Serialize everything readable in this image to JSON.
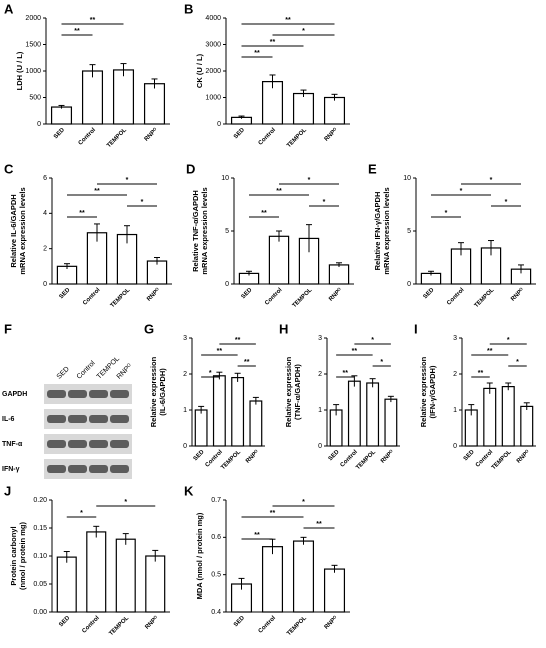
{
  "blot": {
    "label": "F",
    "lanes": [
      "SED",
      "Control",
      "TEMPOL",
      "RNPᴼ"
    ],
    "rows": [
      "GAPDH",
      "IL-6",
      "TNF-α",
      "IFN-γ"
    ]
  },
  "chart_data": [
    {
      "type": "bar",
      "label": "A",
      "ylabel": [
        "LDH (U / L)"
      ],
      "categories": [
        "SED",
        "Control",
        "TEMPOL",
        "RNPᴼ"
      ],
      "values": [
        320,
        1000,
        1020,
        760
      ],
      "errors": [
        30,
        120,
        120,
        90
      ],
      "ylim": [
        0,
        2000
      ],
      "yticks": [
        0,
        500,
        1000,
        1500,
        2000
      ],
      "significance": [
        {
          "label": "**",
          "from": "SED",
          "to": "Control"
        },
        {
          "label": "**",
          "from": "SED",
          "to": "TEMPOL"
        }
      ]
    },
    {
      "type": "bar",
      "label": "B",
      "ylabel": [
        "CK (U / L)"
      ],
      "categories": [
        "SED",
        "Control",
        "TEMPOL",
        "RNPᴼ"
      ],
      "values": [
        250,
        1600,
        1150,
        1000
      ],
      "errors": [
        50,
        250,
        130,
        120
      ],
      "ylim": [
        0,
        4000
      ],
      "yticks": [
        0,
        1000,
        2000,
        3000,
        4000
      ],
      "significance": [
        {
          "label": "**",
          "from": "SED",
          "to": "Control"
        },
        {
          "label": "**",
          "from": "SED",
          "to": "TEMPOL"
        },
        {
          "label": "*",
          "from": "Control",
          "to": "RNPᴼ"
        },
        {
          "label": "**",
          "from": "SED",
          "to": "RNPᴼ"
        }
      ]
    },
    {
      "type": "bar",
      "label": "C",
      "ylabel": [
        "Relative IL-6/GAPDH",
        "mRNA expression levels"
      ],
      "categories": [
        "SED",
        "Control",
        "TEMPOL",
        "RNPᴼ"
      ],
      "values": [
        1,
        2.9,
        2.8,
        1.3
      ],
      "errors": [
        0.15,
        0.5,
        0.5,
        0.2
      ],
      "ylim": [
        0,
        6
      ],
      "yticks": [
        0,
        2,
        4,
        6
      ],
      "significance": [
        {
          "label": "**",
          "from": "SED",
          "to": "Control"
        },
        {
          "label": "*",
          "from": "TEMPOL",
          "to": "RNPᴼ"
        },
        {
          "label": "**",
          "from": "SED",
          "to": "TEMPOL"
        },
        {
          "label": "*",
          "from": "Control",
          "to": "RNPᴼ"
        }
      ]
    },
    {
      "type": "bar",
      "label": "D",
      "ylabel": [
        "Relative TNF-α/GAPDH",
        "mRNA expression levels"
      ],
      "categories": [
        "SED",
        "Control",
        "TEMPOL",
        "RNPᴼ"
      ],
      "values": [
        1,
        4.5,
        4.3,
        1.8
      ],
      "errors": [
        0.2,
        0.5,
        1.3,
        0.2
      ],
      "ylim": [
        0,
        10
      ],
      "yticks": [
        0,
        5,
        10
      ],
      "significance": [
        {
          "label": "**",
          "from": "SED",
          "to": "Control"
        },
        {
          "label": "*",
          "from": "TEMPOL",
          "to": "RNPᴼ"
        },
        {
          "label": "**",
          "from": "SED",
          "to": "TEMPOL"
        },
        {
          "label": "*",
          "from": "Control",
          "to": "RNPᴼ"
        }
      ]
    },
    {
      "type": "bar",
      "label": "E",
      "ylabel": [
        "Relative IFN-γ/GAPDH",
        "mRNA expression levels"
      ],
      "categories": [
        "SED",
        "Control",
        "TEMPOL",
        "RNPᴼ"
      ],
      "values": [
        1,
        3.3,
        3.4,
        1.4
      ],
      "errors": [
        0.2,
        0.6,
        0.7,
        0.4
      ],
      "ylim": [
        0,
        10
      ],
      "yticks": [
        0,
        5,
        10
      ],
      "significance": [
        {
          "label": "*",
          "from": "SED",
          "to": "Control"
        },
        {
          "label": "*",
          "from": "TEMPOL",
          "to": "RNPᴼ"
        },
        {
          "label": "*",
          "from": "SED",
          "to": "TEMPOL"
        },
        {
          "label": "*",
          "from": "Control",
          "to": "RNPᴼ"
        }
      ]
    },
    {
      "type": "bar",
      "label": "G",
      "ylabel": [
        "Relative expression",
        "(IL-6/GAPDH)"
      ],
      "categories": [
        "SED",
        "Control",
        "TEMPOL",
        "RNPᴼ"
      ],
      "values": [
        1,
        1.95,
        1.9,
        1.25
      ],
      "errors": [
        0.1,
        0.1,
        0.12,
        0.1
      ],
      "ylim": [
        0,
        3
      ],
      "yticks": [
        0,
        1,
        2,
        3
      ],
      "significance": [
        {
          "label": "*",
          "from": "SED",
          "to": "Control"
        },
        {
          "label": "**",
          "from": "TEMPOL",
          "to": "RNPᴼ"
        },
        {
          "label": "**",
          "from": "SED",
          "to": "TEMPOL"
        },
        {
          "label": "**",
          "from": "Control",
          "to": "RNPᴼ"
        }
      ]
    },
    {
      "type": "bar",
      "label": "H",
      "ylabel": [
        "Relative expression",
        "(TNF-α/GAPDH)"
      ],
      "categories": [
        "SED",
        "Control",
        "TEMPOL",
        "RNPᴼ"
      ],
      "values": [
        1,
        1.8,
        1.75,
        1.3
      ],
      "errors": [
        0.15,
        0.15,
        0.12,
        0.08
      ],
      "ylim": [
        0,
        3
      ],
      "yticks": [
        0,
        1,
        2,
        3
      ],
      "significance": [
        {
          "label": "**",
          "from": "SED",
          "to": "Control"
        },
        {
          "label": "*",
          "from": "TEMPOL",
          "to": "RNPᴼ"
        },
        {
          "label": "**",
          "from": "SED",
          "to": "TEMPOL"
        },
        {
          "label": "*",
          "from": "Control",
          "to": "RNPᴼ"
        }
      ]
    },
    {
      "type": "bar",
      "label": "I",
      "ylabel": [
        "Relative expression",
        "(IFN-γ/GAPDH)"
      ],
      "categories": [
        "SED",
        "Control",
        "TEMPOL",
        "RNPᴼ"
      ],
      "values": [
        1,
        1.6,
        1.65,
        1.1
      ],
      "errors": [
        0.15,
        0.15,
        0.1,
        0.1
      ],
      "ylim": [
        0,
        3
      ],
      "yticks": [
        0,
        1,
        2,
        3
      ],
      "significance": [
        {
          "label": "**",
          "from": "SED",
          "to": "Control"
        },
        {
          "label": "*",
          "from": "TEMPOL",
          "to": "RNPᴼ"
        },
        {
          "label": "**",
          "from": "SED",
          "to": "TEMPOL"
        },
        {
          "label": "*",
          "from": "Control",
          "to": "RNPᴼ"
        }
      ]
    },
    {
      "type": "bar",
      "label": "J",
      "ylabel": [
        "Protein carbonyl",
        "(nmol / protein mg)"
      ],
      "categories": [
        "SED",
        "Control",
        "TEMPOL",
        "RNPᴼ"
      ],
      "values": [
        0.098,
        0.143,
        0.13,
        0.1
      ],
      "errors": [
        0.01,
        0.01,
        0.01,
        0.01
      ],
      "ylim": [
        0,
        0.2
      ],
      "yticks": [
        {
          "value": 0,
          "label": "0.00"
        },
        0.05,
        {
          "value": 0.1,
          "label": "0.10"
        },
        0.15,
        {
          "value": 0.2,
          "label": "0.20"
        }
      ],
      "significance": [
        {
          "label": "*",
          "from": "SED",
          "to": "Control"
        },
        {
          "label": "*",
          "from": "Control",
          "to": "RNPᴼ"
        }
      ]
    },
    {
      "type": "bar",
      "label": "K",
      "ylabel": [
        "MDA (nmol / protein mg)"
      ],
      "categories": [
        "SED",
        "Control",
        "TEMPOL",
        "RNPᴼ"
      ],
      "values": [
        0.475,
        0.575,
        0.59,
        0.515
      ],
      "errors": [
        0.015,
        0.02,
        0.01,
        0.01
      ],
      "ylim": [
        0.4,
        0.7
      ],
      "yticks": [
        0.4,
        0.5,
        0.6,
        0.7
      ],
      "significance": [
        {
          "label": "**",
          "from": "SED",
          "to": "Control"
        },
        {
          "label": "**",
          "from": "TEMPOL",
          "to": "RNPᴼ"
        },
        {
          "label": "**",
          "from": "SED",
          "to": "TEMPOL"
        },
        {
          "label": "*",
          "from": "Control",
          "to": "RNPᴼ"
        }
      ]
    }
  ]
}
